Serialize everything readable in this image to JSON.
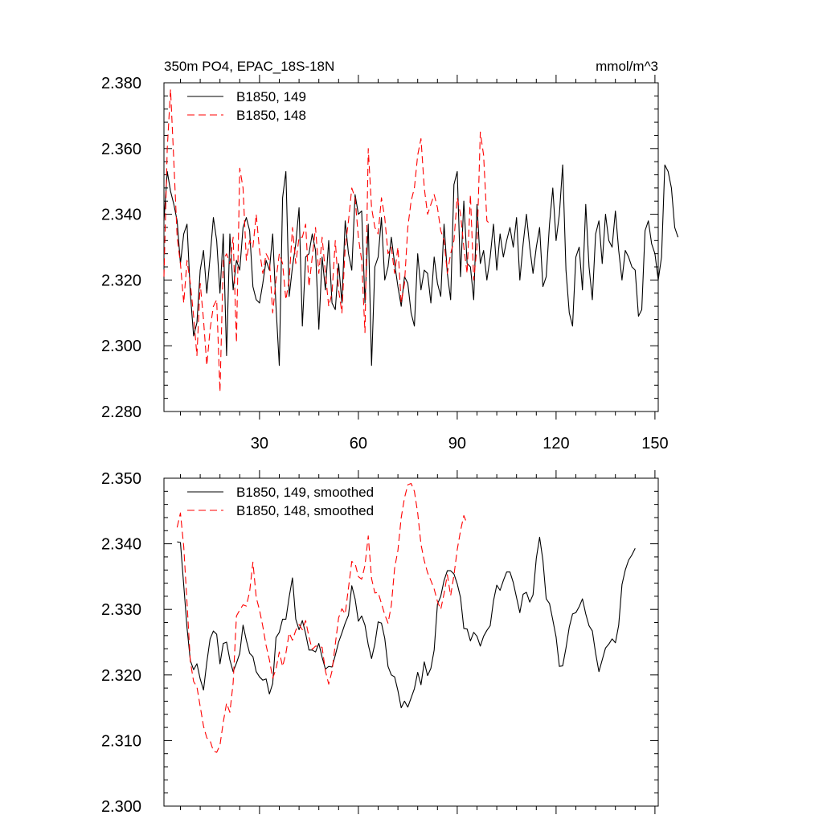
{
  "chart_data": [
    {
      "type": "line",
      "title": "350m PO4, EPAC_18S-18N",
      "units": "mmol/m^3",
      "xlabel": "",
      "ylabel": "",
      "xlim": [
        1,
        151
      ],
      "ylim": [
        2.28,
        2.38
      ],
      "xticks": [
        30,
        60,
        90,
        120,
        150
      ],
      "xtick_labels": [
        "30",
        "60",
        "90",
        "120",
        "150"
      ],
      "yticks": [
        2.28,
        2.3,
        2.32,
        2.34,
        2.36,
        2.38
      ],
      "ytick_labels": [
        "2.280",
        "2.300",
        "2.320",
        "2.340",
        "2.360",
        "2.380"
      ],
      "legend_position": "top-left",
      "series": [
        {
          "name": "B1850, 149",
          "color": "#000000",
          "dash": "solid",
          "x_start": 1,
          "values": [
            2.338,
            2.353,
            2.347,
            2.343,
            2.338,
            2.325,
            2.334,
            2.337,
            2.316,
            2.303,
            2.307,
            2.323,
            2.329,
            2.316,
            2.327,
            2.339,
            2.332,
            2.316,
            2.334,
            2.297,
            2.334,
            2.317,
            2.326,
            2.323,
            2.336,
            2.339,
            2.335,
            2.318,
            2.314,
            2.313,
            2.319,
            2.326,
            2.323,
            2.334,
            2.312,
            2.294,
            2.345,
            2.353,
            2.315,
            2.324,
            2.331,
            2.342,
            2.306,
            2.327,
            2.328,
            2.334,
            2.329,
            2.305,
            2.327,
            2.317,
            2.332,
            2.313,
            2.311,
            2.325,
            2.313,
            2.338,
            2.328,
            2.323,
            2.346,
            2.34,
            2.341,
            2.313,
            2.337,
            2.294,
            2.324,
            2.327,
            2.339,
            2.32,
            2.324,
            2.333,
            2.325,
            2.318,
            2.312,
            2.321,
            2.319,
            2.31,
            2.306,
            2.328,
            2.317,
            2.323,
            2.322,
            2.313,
            2.327,
            2.319,
            2.315,
            2.337,
            2.322,
            2.314,
            2.349,
            2.353,
            2.321,
            2.344,
            2.325,
            2.324,
            2.314,
            2.343,
            2.325,
            2.329,
            2.32,
            2.327,
            2.337,
            2.323,
            2.334,
            2.327,
            2.332,
            2.336,
            2.33,
            2.339,
            2.32,
            2.331,
            2.34,
            2.33,
            2.322,
            2.33,
            2.336,
            2.318,
            2.321,
            2.337,
            2.348,
            2.332,
            2.34,
            2.355,
            2.323,
            2.31,
            2.306,
            2.327,
            2.33,
            2.317,
            2.343,
            2.324,
            2.314,
            2.334,
            2.338,
            2.325,
            2.34,
            2.332,
            2.33,
            2.341,
            2.329,
            2.32,
            2.329,
            2.327,
            2.324,
            2.323,
            2.309,
            2.311,
            2.335,
            2.338,
            2.331,
            2.328,
            2.32,
            2.327,
            2.355,
            2.353,
            2.348,
            2.336,
            2.333
          ]
        },
        {
          "name": "B1850, 148",
          "color": "#ff0000",
          "dash": "dashed",
          "x_start": 1,
          "values": [
            2.321,
            2.36,
            2.378,
            2.356,
            2.333,
            2.325,
            2.313,
            2.326,
            2.319,
            2.309,
            2.297,
            2.319,
            2.308,
            2.294,
            2.305,
            2.312,
            2.314,
            2.286,
            2.326,
            2.328,
            2.325,
            2.333,
            2.301,
            2.354,
            2.348,
            2.326,
            2.332,
            2.33,
            2.34,
            2.329,
            2.322,
            2.328,
            2.326,
            2.31,
            2.32,
            2.328,
            2.325,
            2.314,
            2.32,
            2.336,
            2.325,
            2.333,
            2.333,
            2.337,
            2.318,
            2.327,
            2.336,
            2.322,
            2.333,
            2.322,
            2.312,
            2.316,
            2.332,
            2.317,
            2.31,
            2.33,
            2.338,
            2.348,
            2.345,
            2.333,
            2.326,
            2.304,
            2.36,
            2.342,
            2.336,
            2.334,
            2.345,
            2.339,
            2.328,
            2.33,
            2.322,
            2.33,
            2.313,
            2.319,
            2.336,
            2.344,
            2.348,
            2.358,
            2.363,
            2.348,
            2.34,
            2.343,
            2.346,
            2.342,
            2.335,
            2.332,
            2.322,
            2.328,
            2.332,
            2.345,
            2.34,
            2.33,
            2.322,
            2.346,
            2.32,
            2.33,
            2.365,
            2.358,
            2.338,
            2.337
          ]
        }
      ]
    },
    {
      "type": "line",
      "title": "",
      "xlabel": "",
      "ylabel": "",
      "xlim": [
        1,
        151
      ],
      "ylim": [
        2.3,
        2.35
      ],
      "xticks": [
        30,
        60,
        90,
        120,
        150
      ],
      "xtick_labels": [],
      "yticks": [
        2.3,
        2.31,
        2.32,
        2.33,
        2.34,
        2.35
      ],
      "ytick_labels": [
        "2.300",
        "2.310",
        "2.320",
        "2.330",
        "2.340",
        "2.350"
      ],
      "legend_position": "top-left",
      "series": [
        {
          "name": "B1850, 149, smoothed",
          "color": "#000000",
          "dash": "solid",
          "x_start": 5,
          "values": [
            2.3403,
            2.3402,
            2.3337,
            2.3272,
            2.3222,
            2.3208,
            2.3217,
            2.3194,
            2.3177,
            2.3219,
            2.3255,
            2.3267,
            2.3262,
            2.3217,
            2.3248,
            2.325,
            2.3223,
            2.3205,
            2.3218,
            2.3233,
            2.3276,
            2.3253,
            2.3233,
            2.3228,
            2.3205,
            2.3197,
            2.3192,
            2.3194,
            2.3171,
            2.3187,
            2.3257,
            2.3265,
            2.3285,
            2.3285,
            2.3319,
            2.3348,
            2.3285,
            2.3269,
            2.3283,
            2.3263,
            2.3238,
            2.3238,
            2.3235,
            2.3248,
            2.3227,
            2.3209,
            2.3213,
            2.3212,
            2.323,
            2.325,
            2.3264,
            2.3279,
            2.3291,
            2.3336,
            2.3316,
            2.3282,
            2.329,
            2.3276,
            2.3246,
            2.3225,
            2.3247,
            2.3281,
            2.3279,
            2.3256,
            2.3213,
            2.32,
            2.3197,
            2.3176,
            2.315,
            2.316,
            2.3151,
            2.3165,
            2.3179,
            2.3204,
            2.3185,
            2.322,
            2.3199,
            2.321,
            2.3238,
            2.3308,
            2.332,
            2.3344,
            2.3359,
            2.3359,
            2.3354,
            2.3339,
            2.3318,
            2.3271,
            2.327,
            2.3252,
            2.3265,
            2.3259,
            2.3244,
            2.3259,
            2.3268,
            2.3275,
            2.3313,
            2.3337,
            2.3329,
            2.3344,
            2.3357,
            2.3357,
            2.3341,
            2.3318,
            2.3295,
            2.3323,
            2.3326,
            2.3311,
            2.3322,
            2.3378,
            2.341,
            2.3375,
            2.3316,
            2.3309,
            2.3284,
            2.3258,
            2.3213,
            2.3214,
            2.3241,
            2.3273,
            2.3293,
            2.3295,
            2.3304,
            2.3316,
            2.3293,
            2.3275,
            2.3267,
            2.3233,
            2.3205,
            2.3223,
            2.3241,
            2.3247,
            2.3255,
            2.3249,
            2.3276,
            2.3338,
            2.336,
            2.3375,
            2.3383,
            2.3393
          ]
        },
        {
          "name": "B1850, 148, smoothed",
          "color": "#ff0000",
          "dash": "dashed",
          "x_start": 5,
          "values": [
            2.3425,
            2.3447,
            2.3396,
            2.331,
            2.3221,
            2.319,
            2.3182,
            2.3152,
            2.3122,
            2.3104,
            2.31,
            2.3084,
            2.3082,
            2.3093,
            2.3128,
            2.3157,
            2.3143,
            2.3188,
            2.329,
            2.3299,
            2.3307,
            2.3305,
            2.3327,
            2.3372,
            2.3318,
            2.3299,
            2.3274,
            2.3245,
            2.3223,
            2.3195,
            2.3209,
            2.3235,
            2.3213,
            2.3233,
            2.3264,
            2.3253,
            2.3268,
            2.3277,
            2.3269,
            2.3283,
            2.3258,
            2.3239,
            2.3244,
            2.3244,
            2.3242,
            2.3206,
            2.3186,
            2.3206,
            2.3247,
            2.3287,
            2.3301,
            2.3293,
            2.3333,
            2.3373,
            2.337,
            2.335,
            2.3346,
            2.3367,
            2.3412,
            2.3347,
            2.3325,
            2.3326,
            2.3309,
            2.3292,
            2.3279,
            2.3306,
            2.3363,
            2.339,
            2.344,
            2.347,
            2.349,
            2.3492,
            2.348,
            2.3447,
            2.3399,
            2.3374,
            2.3356,
            2.3344,
            2.3331,
            2.3312,
            2.33,
            2.3324,
            2.3353,
            2.3321,
            2.3352,
            2.3391,
            2.342,
            2.3443,
            2.343
          ]
        }
      ]
    }
  ]
}
